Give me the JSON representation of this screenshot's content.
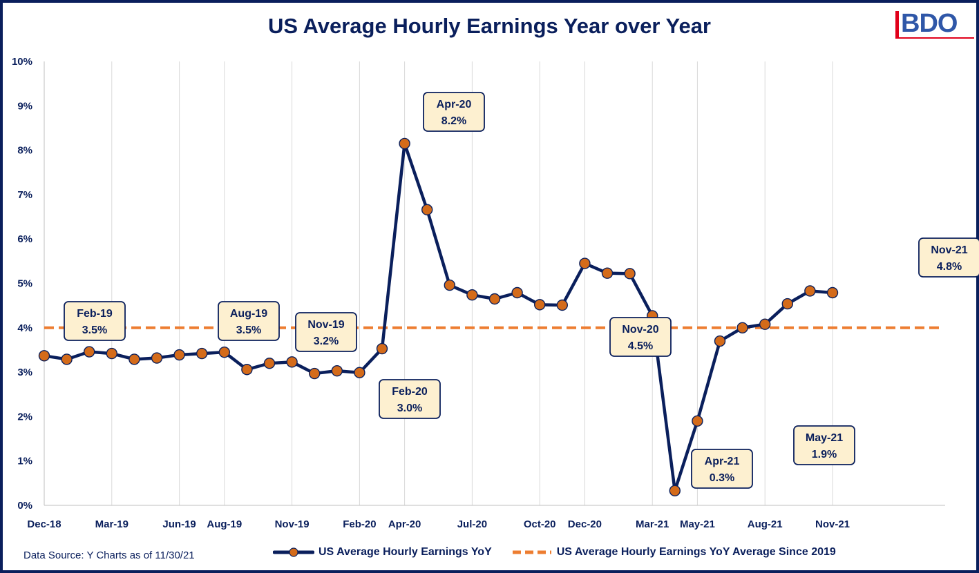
{
  "chart_data": {
    "type": "line",
    "title": "US Average Hourly Earnings Year over Year",
    "xlabel": "",
    "ylabel": "",
    "ylim": [
      0,
      10
    ],
    "y_ticks": [
      "0%",
      "1%",
      "2%",
      "3%",
      "4%",
      "5%",
      "6%",
      "7%",
      "8%",
      "9%",
      "10%"
    ],
    "x_tick_labels": [
      "Dec-18",
      "Mar-19",
      "Jun-19",
      "Aug-19",
      "Nov-19",
      "Feb-20",
      "Apr-20",
      "Jul-20",
      "Oct-20",
      "Dec-20",
      "Mar-21",
      "May-21",
      "Aug-21",
      "Nov-21"
    ],
    "x_tick_months": [
      0,
      3,
      6,
      8,
      11,
      14,
      16,
      19,
      22,
      24,
      27,
      29,
      32,
      35
    ],
    "grid": "vertical",
    "legend_position": "bottom",
    "series": [
      {
        "name": "US Average Hourly Earnings YoY",
        "style": "line-with-markers",
        "color": "#0a1f5c",
        "marker_color": "#d46b1a",
        "x": [
          "Dec-18",
          "Jan-19",
          "Feb-19",
          "Mar-19",
          "Apr-19",
          "May-19",
          "Jun-19",
          "Jul-19",
          "Aug-19",
          "Sep-19",
          "Oct-19",
          "Nov-19",
          "Dec-19",
          "Jan-20",
          "Feb-20",
          "Mar-20",
          "Apr-20",
          "May-20",
          "Jun-20",
          "Jul-20",
          "Aug-20",
          "Sep-20",
          "Oct-20",
          "Nov-20",
          "Dec-20",
          "Jan-21",
          "Feb-21",
          "Mar-21",
          "Apr-21",
          "May-21",
          "Jun-21",
          "Jul-21",
          "Aug-21",
          "Sep-21",
          "Oct-21",
          "Nov-21"
        ],
        "values": [
          3.37,
          3.29,
          3.46,
          3.42,
          3.29,
          3.32,
          3.39,
          3.42,
          3.45,
          3.06,
          3.2,
          3.23,
          2.97,
          3.03,
          2.99,
          3.53,
          8.15,
          6.66,
          4.96,
          4.74,
          4.65,
          4.79,
          4.52,
          4.51,
          5.45,
          5.23,
          5.22,
          4.27,
          0.33,
          1.9,
          3.7,
          4.0,
          4.08,
          4.54,
          4.83,
          4.79
        ]
      },
      {
        "name": "US Average Hourly Earnings YoY Average Since 2019",
        "style": "dashed",
        "color": "#ed7d31",
        "value": 4.0
      }
    ],
    "callouts": [
      {
        "label": "Feb-19",
        "value_text": "3.5%"
      },
      {
        "label": "Aug-19",
        "value_text": "3.5%"
      },
      {
        "label": "Nov-19",
        "value_text": "3.2%"
      },
      {
        "label": "Feb-20",
        "value_text": "3.0%"
      },
      {
        "label": "Apr-20",
        "value_text": "8.2%"
      },
      {
        "label": "Nov-20",
        "value_text": "4.5%"
      },
      {
        "label": "Apr-21",
        "value_text": "0.3%"
      },
      {
        "label": "May-21",
        "value_text": "1.9%"
      },
      {
        "label": "Nov-21",
        "value_text": "4.8%"
      }
    ]
  },
  "logo_text": "BDO",
  "source_note": "Data Source: Y Charts as of 11/30/21",
  "colors": {
    "navy": "#0a1f5c",
    "orange": "#ed7d31",
    "marker": "#d46b1a",
    "callout_fill": "#fdf0d0",
    "grid": "#d9d9d9",
    "logo_red": "#e1001a",
    "logo_blue": "#2f57a8"
  }
}
